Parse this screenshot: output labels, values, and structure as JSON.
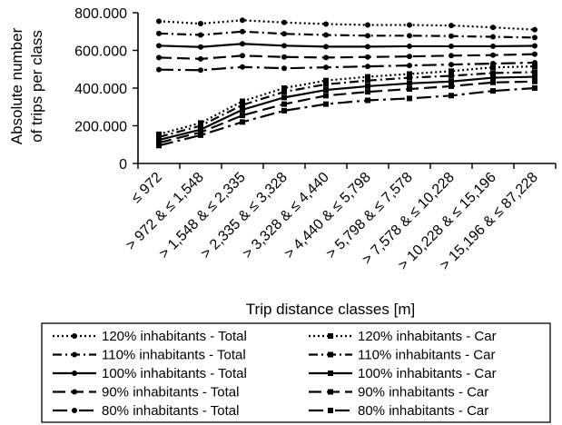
{
  "chart_data": {
    "type": "line",
    "title": "",
    "ylabel": [
      "Absolute number",
      "of trips per class"
    ],
    "xlabel": "Trip distance classes [m]",
    "ylim": [
      0,
      800000
    ],
    "yticks": [
      0,
      200000,
      400000,
      600000,
      800000
    ],
    "ytick_labels": [
      "0",
      "200.000",
      "400.000",
      "600.000",
      "800.000"
    ],
    "categories": [
      "≤ 972",
      "> 972 & ≤ 1,548",
      "> 1,548 & ≤ 2,335",
      "> 2,335 & ≤ 3,328",
      "> 3,328 & ≤ 4,440",
      "> 4,440 & ≤ 5,798",
      "> 5,798 & ≤ 7,578",
      "> 7,578 & ≤ 10,228",
      "> 10,228 & ≤ 15,196",
      "> 15,196 & ≤ 87,228"
    ],
    "grid": false,
    "legend_position": "bottom",
    "series": [
      {
        "name": "120% inhabitants - Total",
        "dash": "dotted",
        "marker": "circle",
        "values": [
          755000,
          742000,
          760000,
          748000,
          740000,
          735000,
          735000,
          732000,
          722000,
          710000
        ]
      },
      {
        "name": "120% inhabitants - Car",
        "dash": "dotted",
        "marker": "square",
        "values": [
          155000,
          215000,
          330000,
          400000,
          440000,
          460000,
          475000,
          490000,
          510000,
          515000
        ]
      },
      {
        "name": "110% inhabitants - Total",
        "dash": "dash-dot",
        "marker": "circle",
        "values": [
          690000,
          682000,
          700000,
          688000,
          682000,
          678000,
          678000,
          676000,
          672000,
          668000
        ]
      },
      {
        "name": "110% inhabitants - Car",
        "dash": "dash-dot",
        "marker": "square",
        "values": [
          140000,
          200000,
          310000,
          380000,
          420000,
          440000,
          455000,
          465000,
          480000,
          485000
        ]
      },
      {
        "name": "100% inhabitants - Total",
        "dash": "solid",
        "marker": "circle",
        "values": [
          625000,
          618000,
          635000,
          625000,
          620000,
          620000,
          622000,
          622000,
          622000,
          624000
        ]
      },
      {
        "name": "100% inhabitants - Car",
        "dash": "solid",
        "marker": "square",
        "values": [
          125000,
          180000,
          285000,
          350000,
          390000,
          410000,
          425000,
          435000,
          455000,
          460000
        ]
      },
      {
        "name": "90% inhabitants - Total",
        "dash": "long-dash",
        "marker": "circle",
        "values": [
          562000,
          555000,
          572000,
          565000,
          562000,
          565000,
          568000,
          572000,
          575000,
          580000
        ]
      },
      {
        "name": "90% inhabitants - Car",
        "dash": "long-dash",
        "marker": "square",
        "values": [
          110000,
          165000,
          255000,
          315000,
          360000,
          380000,
          395000,
          410000,
          430000,
          435000
        ]
      },
      {
        "name": "80% inhabitants - Total",
        "dash": "long-dash-dot",
        "marker": "circle",
        "values": [
          498000,
          495000,
          512000,
          505000,
          510000,
          515000,
          520000,
          525000,
          530000,
          535000
        ]
      },
      {
        "name": "80% inhabitants - Car",
        "dash": "long-dash-dot",
        "marker": "square",
        "values": [
          95000,
          150000,
          220000,
          280000,
          315000,
          335000,
          345000,
          360000,
          385000,
          400000
        ]
      }
    ]
  }
}
